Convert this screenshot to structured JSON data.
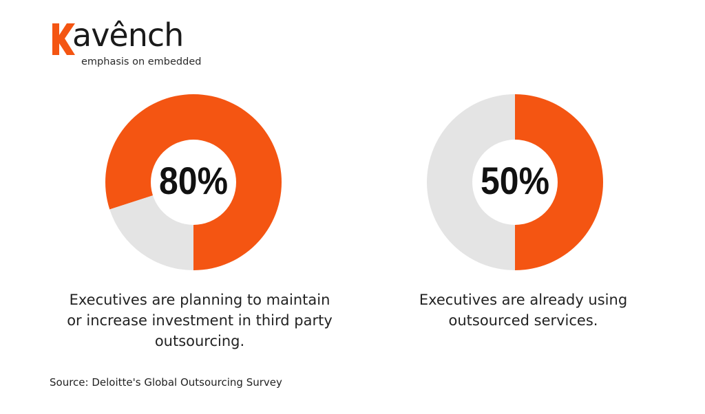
{
  "logo": {
    "wordmark": "avênch",
    "tagline": "emphasis on embedded"
  },
  "colors": {
    "accent": "#f45512",
    "track": "#e4e4e4",
    "text": "#222222"
  },
  "chart_data": [
    {
      "type": "pie",
      "variant": "donut",
      "values": [
        80,
        20
      ],
      "center_label": "80%",
      "caption": "Executives are planning to maintain or increase investment in third party outsourcing.",
      "caption_lines": [
        "Executives are planning to maintain",
        "or increase investment in third party",
        "outsourcing."
      ]
    },
    {
      "type": "pie",
      "variant": "donut",
      "values": [
        50,
        50
      ],
      "center_label": "50%",
      "caption": "Executives are already using outsourced services.",
      "caption_lines": [
        "Executives are already using",
        "outsourced services."
      ]
    }
  ],
  "source": "Source: Deloitte's Global Outsourcing Survey"
}
